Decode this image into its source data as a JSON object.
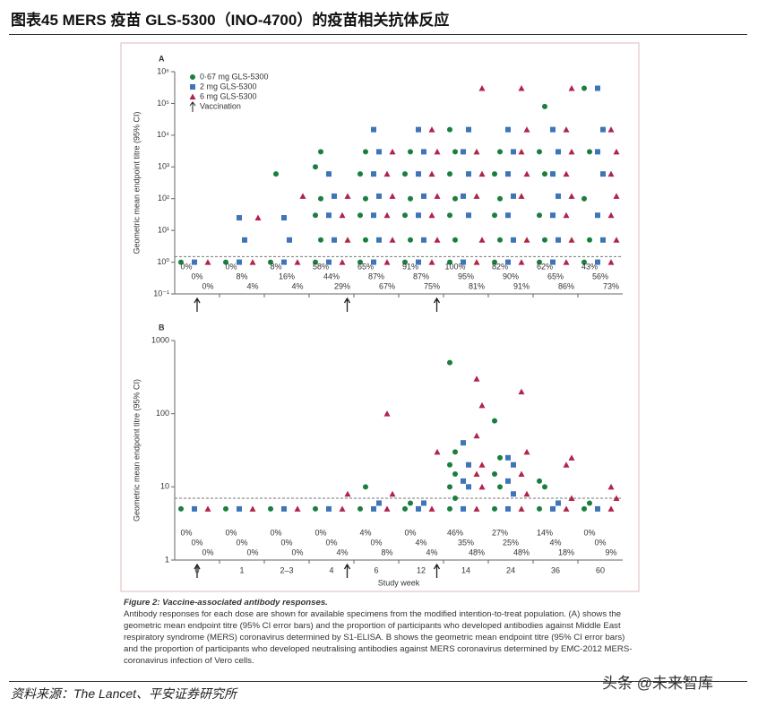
{
  "header": {
    "title": "图表45    MERS 疫苗 GLS-5300（INO-4700）的疫苗相关抗体反应"
  },
  "caption": {
    "title": "Figure 2: Vaccine-associated antibody responses.",
    "text": "Antibody responses for each dose are shown for available specimens from the modified intention-to-treat population. (A) shows the geometric mean endpoint titre (95% CI error bars) and the proportion of participants who developed antibodies against Middle East respiratory syndrome (MERS) coronavirus determined by S1-ELISA. B shows the geometric mean endpoint titre (95% CI error bars) and the proportion of participants who developed neutralising antibodies against MERS coronavirus determined by EMC-2012 MERS-coronavirus infection of Vero cells."
  },
  "footer": {
    "source": "资料来源：The Lancet、平安证券研究所",
    "watermark": "头条 @未来智库"
  },
  "chart_data": [
    {
      "type": "scatter",
      "panel": "A",
      "ylabel": "Geometric mean endpoint titre (95% CI)",
      "log": true,
      "ylim": [
        0.1,
        1000000
      ],
      "yticks": [
        {
          "value": 0.1,
          "label": "10⁻¹"
        },
        {
          "value": 1,
          "label": "10⁰"
        },
        {
          "value": 10,
          "label": "10¹"
        },
        {
          "value": 100,
          "label": "10²"
        },
        {
          "value": 1000,
          "label": "10³"
        },
        {
          "value": 10000,
          "label": "10⁴"
        },
        {
          "value": 100000,
          "label": "10⁵"
        },
        {
          "value": 1000000,
          "label": "10⁶"
        }
      ],
      "threshold": 1.5,
      "legend_extra": "Vaccination",
      "series": [
        {
          "name": "0·67 mg GLS-5300",
          "color": "#1a7f3c",
          "values": [
            [
              1
            ],
            [
              1
            ],
            [
              1,
              600
            ],
            [
              1,
              5,
              30,
              100,
              1000,
              3000
            ],
            [
              1,
              5,
              30,
              100,
              600,
              3000
            ],
            [
              1,
              5,
              30,
              100,
              600,
              3000
            ],
            [
              1,
              5,
              30,
              100,
              600,
              3000,
              15000
            ],
            [
              1,
              5,
              30,
              100,
              600,
              3000
            ],
            [
              1,
              5,
              30,
              600,
              3000,
              80000
            ],
            [
              1,
              5,
              100,
              3000,
              300000
            ]
          ],
          "percent": [
            0,
            0,
            8,
            58,
            65,
            91,
            100,
            82,
            62,
            43
          ],
          "percent_labels": [
            "0%",
            "0%",
            "8%",
            "58%",
            "65%",
            "91%",
            "100%",
            "82%",
            "62%",
            "43%"
          ]
        },
        {
          "name": "2 mg GLS-5300",
          "color": "#3f74b8",
          "values": [
            [
              1
            ],
            [
              1,
              5,
              25
            ],
            [
              1,
              5,
              25
            ],
            [
              1,
              5,
              30,
              120,
              600
            ],
            [
              1,
              5,
              30,
              120,
              600,
              3000,
              15000
            ],
            [
              1,
              5,
              30,
              120,
              600,
              3000,
              15000
            ],
            [
              1,
              30,
              120,
              600,
              3000,
              15000
            ],
            [
              1,
              5,
              30,
              120,
              600,
              3000,
              15000
            ],
            [
              1,
              5,
              30,
              120,
              600,
              3000,
              15000
            ],
            [
              1,
              5,
              30,
              600,
              3000,
              15000,
              300000
            ]
          ],
          "percent": [
            0,
            8,
            16,
            44,
            87,
            87,
            95,
            90,
            65,
            56
          ],
          "percent_labels": [
            "0%",
            "8%",
            "16%",
            "44%",
            "87%",
            "87%",
            "95%",
            "90%",
            "65%",
            "56%"
          ]
        },
        {
          "name": "6 mg GLS-5300",
          "color": "#b0234a",
          "values": [
            [
              1
            ],
            [
              1,
              25
            ],
            [
              1,
              120
            ],
            [
              1,
              5,
              30,
              120
            ],
            [
              1,
              5,
              30,
              120,
              600,
              3000
            ],
            [
              1,
              5,
              30,
              120,
              600,
              3000,
              15000
            ],
            [
              1,
              5,
              120,
              600,
              3000,
              300000
            ],
            [
              1,
              5,
              120,
              600,
              3000,
              15000,
              300000
            ],
            [
              1,
              5,
              30,
              120,
              600,
              3000,
              15000,
              300000
            ],
            [
              1,
              5,
              30,
              120,
              600,
              3000,
              15000
            ]
          ],
          "percent": [
            0,
            4,
            4,
            29,
            67,
            75,
            81,
            91,
            86,
            73
          ],
          "percent_labels": [
            "0%",
            "4%",
            "4%",
            "29%",
            "67%",
            "75%",
            "81%",
            "91%",
            "86%",
            "73%"
          ]
        }
      ]
    },
    {
      "type": "scatter",
      "panel": "B",
      "ylabel": "Geometric mean endpoint titre (95% CI)",
      "xlabel": "Study week",
      "log": true,
      "ylim": [
        1,
        1000
      ],
      "yticks": [
        1,
        10,
        100,
        1000
      ],
      "threshold": 7,
      "categories": [
        "0",
        "1",
        "2–3",
        "4",
        "6",
        "12",
        "14",
        "24",
        "36",
        "60"
      ],
      "series": [
        {
          "color": "#1a7f3c",
          "values": [
            [
              5
            ],
            [
              5
            ],
            [
              5
            ],
            [
              5
            ],
            [
              5,
              10
            ],
            [
              5,
              6
            ],
            [
              5,
              7,
              10,
              15,
              20,
              30,
              500
            ],
            [
              5,
              10,
              15,
              25,
              80
            ],
            [
              5,
              10,
              12
            ],
            [
              5,
              6
            ]
          ],
          "percent": [
            0,
            0,
            0,
            0,
            4,
            0,
            46,
            27,
            14,
            0
          ],
          "percent_labels": [
            "0%",
            "0%",
            "0%",
            "0%",
            "4%",
            "0%",
            "46%",
            "27%",
            "14%",
            "0%"
          ]
        },
        {
          "color": "#3f74b8",
          "values": [
            [
              5
            ],
            [
              5
            ],
            [
              5
            ],
            [
              5
            ],
            [
              5,
              6
            ],
            [
              5,
              6
            ],
            [
              5,
              10,
              12,
              20,
              40
            ],
            [
              5,
              8,
              12,
              20,
              25
            ],
            [
              5,
              6
            ],
            [
              5
            ]
          ],
          "percent": [
            0,
            0,
            0,
            0,
            0,
            4,
            35,
            25,
            4,
            0
          ],
          "percent_labels": [
            "0%",
            "0%",
            "0%",
            "0%",
            "0%",
            "4%",
            "35%",
            "25%",
            "4%",
            "0%"
          ]
        },
        {
          "color": "#b0234a",
          "values": [
            [
              5
            ],
            [
              5
            ],
            [
              5
            ],
            [
              5,
              8
            ],
            [
              5,
              8,
              100
            ],
            [
              5,
              30
            ],
            [
              5,
              10,
              15,
              20,
              50,
              130,
              300
            ],
            [
              5,
              8,
              15,
              30,
              200
            ],
            [
              5,
              7,
              20,
              25
            ],
            [
              5,
              7,
              10
            ]
          ],
          "percent": [
            0,
            0,
            0,
            4,
            8,
            4,
            48,
            48,
            18,
            9
          ],
          "percent_labels": [
            "0%",
            "0%",
            "0%",
            "4%",
            "8%",
            "4%",
            "48%",
            "48%",
            "18%",
            "9%"
          ]
        }
      ]
    }
  ]
}
